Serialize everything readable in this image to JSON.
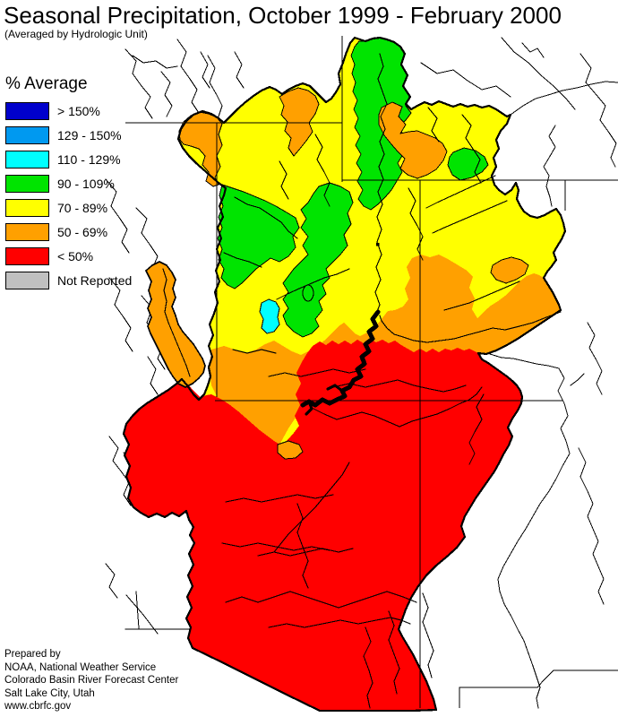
{
  "header": {
    "title": "Seasonal Precipitation, October 1999 - February 2000",
    "subtitle": "(Averaged by Hydrologic Unit)"
  },
  "legend": {
    "title": "% Average",
    "items": [
      {
        "label": "> 150%",
        "color": "#0000CC"
      },
      {
        "label": "129 - 150%",
        "color": "#0099F0"
      },
      {
        "label": "110 - 129%",
        "color": "#00FFFF"
      },
      {
        "label": "90 - 109%",
        "color": "#00E400"
      },
      {
        "label": "70 - 89%",
        "color": "#FFFF00"
      },
      {
        "label": "50 - 69%",
        "color": "#FFA000"
      },
      {
        "label": "< 50%",
        "color": "#FF0000"
      },
      {
        "label": "Not Reported",
        "color": "#C0C0C0"
      }
    ]
  },
  "footer": {
    "lines": [
      "Prepared by",
      "NOAA, National Weather Service",
      "Colorado Basin River Forecast Center",
      "Salt Lake City, Utah",
      "www.cbrfc.gov"
    ]
  }
}
